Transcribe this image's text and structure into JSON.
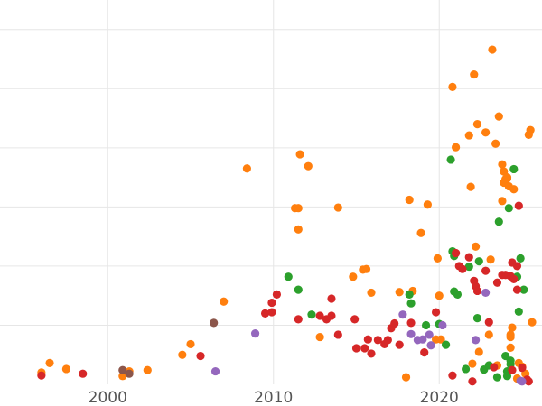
{
  "chart_data": {
    "type": "scatter",
    "title": "",
    "xlabel": "",
    "ylabel": "",
    "xlim": [
      1993.5,
      2026.2
    ],
    "ylim": [
      0,
      6.5
    ],
    "x_ticks": [
      2000,
      2010,
      2020
    ],
    "x_tick_labels": [
      "2000",
      "2010",
      "2020"
    ],
    "y_grid": [
      1,
      2,
      3,
      4,
      5,
      6
    ],
    "y_tick_labels_visible": false,
    "grid": true,
    "legend": "none",
    "series": [
      {
        "color": "#ff7f0e",
        "points": [
          [
            1996.0,
            0.2
          ],
          [
            1996.5,
            0.36
          ],
          [
            1997.5,
            0.26
          ],
          [
            2000.9,
            0.14
          ],
          [
            2001.3,
            0.22
          ],
          [
            2002.4,
            0.24
          ],
          [
            2004.5,
            0.5
          ],
          [
            2005.0,
            0.68
          ],
          [
            2007.0,
            1.4
          ],
          [
            2008.4,
            3.65
          ],
          [
            2011.3,
            2.98
          ],
          [
            2011.5,
            2.98
          ],
          [
            2011.5,
            2.62
          ],
          [
            2011.6,
            3.89
          ],
          [
            2012.1,
            3.69
          ],
          [
            2012.8,
            0.8
          ],
          [
            2013.9,
            2.99
          ],
          [
            2014.8,
            1.82
          ],
          [
            2015.4,
            1.94
          ],
          [
            2015.6,
            1.95
          ],
          [
            2015.9,
            1.55
          ],
          [
            2017.6,
            1.56
          ],
          [
            2018.0,
            0.12
          ],
          [
            2018.2,
            3.12
          ],
          [
            2018.4,
            1.58
          ],
          [
            2018.9,
            2.56
          ],
          [
            2019.3,
            3.04
          ],
          [
            2019.8,
            0.76
          ],
          [
            2019.9,
            2.13
          ],
          [
            2020.0,
            1.5
          ],
          [
            2020.1,
            0.76
          ],
          [
            2020.8,
            5.03
          ],
          [
            2021.0,
            4.01
          ],
          [
            2021.8,
            4.21
          ],
          [
            2021.9,
            3.34
          ],
          [
            2022.0,
            0.35
          ],
          [
            2022.1,
            5.24
          ],
          [
            2022.2,
            2.33
          ],
          [
            2022.3,
            4.4
          ],
          [
            2022.4,
            0.55
          ],
          [
            2022.8,
            4.26
          ],
          [
            2023.0,
            0.84
          ],
          [
            2023.1,
            2.11
          ],
          [
            2023.2,
            5.66
          ],
          [
            2023.4,
            4.07
          ],
          [
            2023.5,
            0.32
          ],
          [
            2023.6,
            4.53
          ],
          [
            2023.8,
            3.1
          ],
          [
            2023.8,
            3.72
          ],
          [
            2023.9,
            3.41
          ],
          [
            2023.9,
            3.6
          ],
          [
            2024.0,
            3.47
          ],
          [
            2024.1,
            3.48
          ],
          [
            2024.1,
            3.5
          ],
          [
            2024.2,
            3.35
          ],
          [
            2024.3,
            0.8
          ],
          [
            2024.3,
            0.84
          ],
          [
            2024.3,
            0.62
          ],
          [
            2024.4,
            0.96
          ],
          [
            2024.5,
            3.3
          ],
          [
            2024.7,
            0.1
          ],
          [
            2024.8,
            0.36
          ],
          [
            2025.0,
            0.3
          ],
          [
            2025.2,
            0.18
          ],
          [
            2025.4,
            4.22
          ],
          [
            2025.5,
            4.3
          ],
          [
            2025.6,
            1.05
          ]
        ]
      },
      {
        "color": "#2ca02c",
        "points": [
          [
            2010.9,
            1.82
          ],
          [
            2011.5,
            1.6
          ],
          [
            2012.3,
            1.18
          ],
          [
            2018.2,
            1.52
          ],
          [
            2018.3,
            1.37
          ],
          [
            2019.2,
            1.0
          ],
          [
            2020.0,
            1.02
          ],
          [
            2020.4,
            0.67
          ],
          [
            2020.7,
            3.8
          ],
          [
            2020.8,
            2.25
          ],
          [
            2020.9,
            2.17
          ],
          [
            2020.9,
            1.57
          ],
          [
            2021.1,
            1.52
          ],
          [
            2021.6,
            0.26
          ],
          [
            2021.8,
            1.99
          ],
          [
            2022.3,
            1.12
          ],
          [
            2022.4,
            2.08
          ],
          [
            2022.7,
            0.25
          ],
          [
            2023.0,
            0.32
          ],
          [
            2023.5,
            0.12
          ],
          [
            2023.6,
            2.75
          ],
          [
            2024.0,
            0.48
          ],
          [
            2024.1,
            0.22
          ],
          [
            2024.1,
            0.14
          ],
          [
            2024.2,
            2.98
          ],
          [
            2024.3,
            0.34
          ],
          [
            2024.3,
            0.4
          ],
          [
            2024.5,
            3.64
          ],
          [
            2024.7,
            1.82
          ],
          [
            2024.8,
            1.23
          ],
          [
            2024.9,
            2.13
          ],
          [
            2025.1,
            1.6
          ]
        ]
      },
      {
        "color": "#d62728",
        "points": [
          [
            1996.0,
            0.15
          ],
          [
            1998.5,
            0.18
          ],
          [
            2005.6,
            0.48
          ],
          [
            2009.5,
            1.2
          ],
          [
            2009.9,
            1.22
          ],
          [
            2009.9,
            1.38
          ],
          [
            2010.2,
            1.52
          ],
          [
            2011.5,
            1.1
          ],
          [
            2012.8,
            1.16
          ],
          [
            2013.2,
            1.1
          ],
          [
            2013.5,
            1.16
          ],
          [
            2013.5,
            1.45
          ],
          [
            2013.9,
            0.84
          ],
          [
            2014.9,
            1.1
          ],
          [
            2015.0,
            0.61
          ],
          [
            2015.5,
            0.61
          ],
          [
            2015.7,
            0.76
          ],
          [
            2015.9,
            0.52
          ],
          [
            2016.3,
            0.75
          ],
          [
            2016.7,
            0.68
          ],
          [
            2016.9,
            0.75
          ],
          [
            2017.1,
            0.95
          ],
          [
            2017.3,
            1.03
          ],
          [
            2017.6,
            0.67
          ],
          [
            2018.3,
            1.04
          ],
          [
            2019.1,
            0.54
          ],
          [
            2019.8,
            1.22
          ],
          [
            2020.8,
            0.15
          ],
          [
            2021.0,
            2.22
          ],
          [
            2021.2,
            2.0
          ],
          [
            2021.4,
            1.95
          ],
          [
            2021.8,
            2.15
          ],
          [
            2022.0,
            0.05
          ],
          [
            2022.1,
            1.75
          ],
          [
            2022.2,
            1.66
          ],
          [
            2022.3,
            1.58
          ],
          [
            2022.8,
            1.92
          ],
          [
            2023.0,
            1.05
          ],
          [
            2023.3,
            0.29
          ],
          [
            2023.5,
            1.72
          ],
          [
            2023.8,
            1.85
          ],
          [
            2024.0,
            1.85
          ],
          [
            2024.3,
            1.83
          ],
          [
            2024.4,
            2.06
          ],
          [
            2024.4,
            0.24
          ],
          [
            2024.5,
            1.78
          ],
          [
            2024.7,
            2.0
          ],
          [
            2024.7,
            1.6
          ],
          [
            2024.8,
            3.02
          ],
          [
            2025.0,
            0.28
          ],
          [
            2025.3,
            0.08
          ],
          [
            2025.4,
            0.05
          ]
        ]
      },
      {
        "color": "#9467bd",
        "points": [
          [
            2006.5,
            0.22
          ],
          [
            2008.9,
            0.86
          ],
          [
            2017.8,
            1.18
          ],
          [
            2018.3,
            0.85
          ],
          [
            2018.7,
            0.75
          ],
          [
            2019.0,
            0.76
          ],
          [
            2019.4,
            0.84
          ],
          [
            2019.5,
            0.66
          ],
          [
            2020.2,
            1.0
          ],
          [
            2022.2,
            0.75
          ],
          [
            2022.8,
            1.55
          ],
          [
            2024.9,
            0.06
          ],
          [
            2025.0,
            0.05
          ]
        ]
      },
      {
        "color": "#8c564b",
        "points": [
          [
            2000.9,
            0.24
          ],
          [
            2001.3,
            0.18
          ],
          [
            2006.4,
            1.04
          ]
        ]
      }
    ]
  }
}
